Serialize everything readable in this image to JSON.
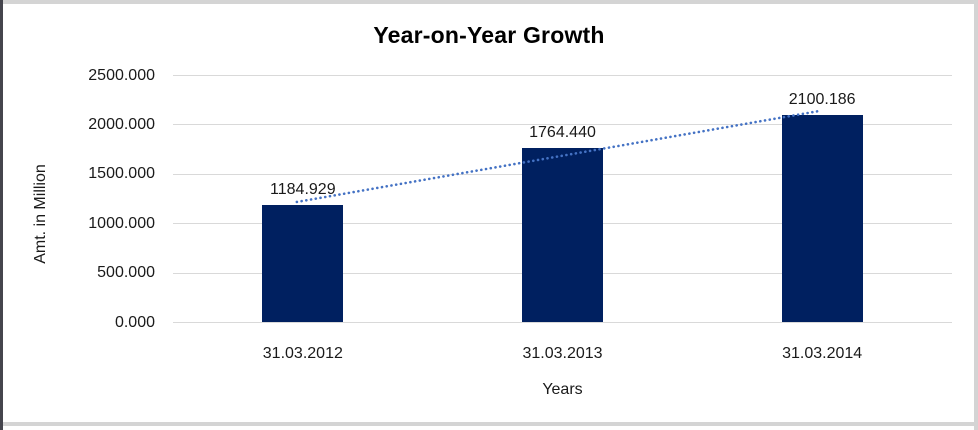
{
  "chart_data": {
    "type": "bar",
    "title": "Year-on-Year Growth",
    "xlabel": "Years",
    "ylabel": "Amt. in Million",
    "categories": [
      "31.03.2012",
      "31.03.2013",
      "31.03.2014"
    ],
    "values": [
      1184.929,
      1764.44,
      2100.186
    ],
    "data_labels": [
      "1184.929",
      "1764.440",
      "2100.186"
    ],
    "yticks": [
      "2500.000",
      "2000.000",
      "1500.000",
      "1000.000",
      "500.000",
      "0.000"
    ],
    "ylim": [
      0,
      2500
    ],
    "grid": true,
    "legend": "none",
    "bar_color": "#002060",
    "trendline": {
      "kind": "linear",
      "style": "dotted",
      "color": "#4472C4"
    },
    "gridline_color": "#d9d9d9"
  }
}
